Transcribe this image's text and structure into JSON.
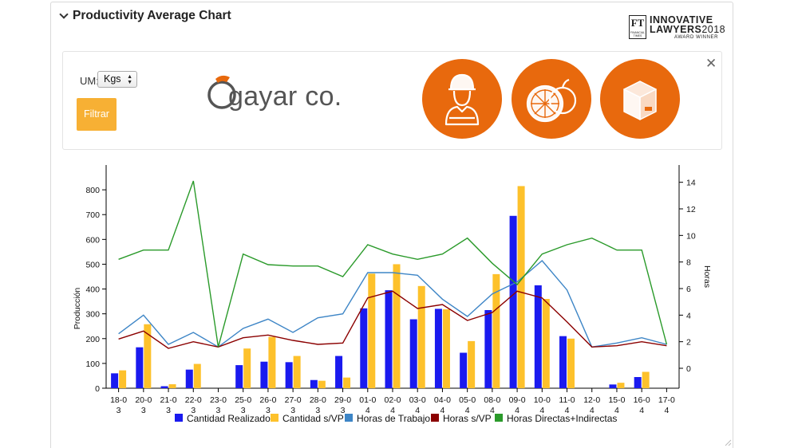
{
  "header": {
    "title": "Productivity Average Chart"
  },
  "award": {
    "ft": "FT",
    "ft_sub": "FINANCIAL TIMES",
    "line1": "INNOVATIVE",
    "line2": "LAWYERS",
    "year": "2018",
    "line3": "AWARD WINNER"
  },
  "filters": {
    "um_label": "UM:",
    "um_value": "Kgs",
    "filter_button": "Filtrar"
  },
  "logo": {
    "text": "gayar co."
  },
  "icons": [
    "worker-icon",
    "citrus-icon",
    "box-icon"
  ],
  "colors": {
    "realizado": "#1a1aef",
    "svp": "#fdc12b",
    "horas_trabajo": "#3d85c6",
    "horas_svp": "#8b0000",
    "horas_directas": "#2a9a2a",
    "accent": "#e8690d",
    "button": "#f7b034"
  },
  "chart_data": {
    "type": "bar",
    "categories": [
      "18-03",
      "20-03",
      "21-03",
      "22-03",
      "23-03",
      "25-03",
      "26-03",
      "27-03",
      "28-03",
      "29-03",
      "01-04",
      "02-04",
      "03-04",
      "04-04",
      "05-04",
      "08-04",
      "09-04",
      "10-04",
      "11-04",
      "12-04",
      "15-04",
      "16-04",
      "17-04"
    ],
    "category_labels": [
      [
        "18-0",
        "3"
      ],
      [
        "20-0",
        "3"
      ],
      [
        "21-0",
        "3"
      ],
      [
        "22-0",
        "3"
      ],
      [
        "23-0",
        "3"
      ],
      [
        "25-0",
        "3"
      ],
      [
        "26-0",
        "3"
      ],
      [
        "27-0",
        "3"
      ],
      [
        "28-0",
        "3"
      ],
      [
        "29-0",
        "3"
      ],
      [
        "01-0",
        "4"
      ],
      [
        "02-0",
        "4"
      ],
      [
        "03-0",
        "4"
      ],
      [
        "04-0",
        "4"
      ],
      [
        "05-0",
        "4"
      ],
      [
        "08-0",
        "4"
      ],
      [
        "09-0",
        "4"
      ],
      [
        "10-0",
        "4"
      ],
      [
        "11-0",
        "4"
      ],
      [
        "12-0",
        "4"
      ],
      [
        "15-0",
        "4"
      ],
      [
        "16-0",
        "4"
      ],
      [
        "17-0",
        "4"
      ]
    ],
    "ylabel": "Producción",
    "y2label": "Horas",
    "ylim": [
      0,
      900
    ],
    "yticks": [
      0,
      100,
      200,
      300,
      400,
      500,
      600,
      700,
      800
    ],
    "y2lim": [
      -1.5,
      15.3
    ],
    "y2ticks": [
      0,
      2,
      4,
      6,
      8,
      10,
      12,
      14
    ],
    "legend_position": "bottom",
    "bar_series": [
      {
        "name": "Cantidad Realizado",
        "values": [
          60,
          165,
          8,
          75,
          0,
          93,
          107,
          105,
          33,
          130,
          322,
          395,
          278,
          320,
          143,
          315,
          695,
          415,
          210,
          0,
          15,
          45,
          0
        ]
      },
      {
        "name": "Cantidad s/VP",
        "values": [
          72,
          258,
          16,
          98,
          0,
          160,
          207,
          130,
          30,
          43,
          462,
          500,
          412,
          318,
          190,
          460,
          815,
          360,
          200,
          0,
          22,
          66,
          0
        ]
      }
    ],
    "line_series": [
      {
        "name": "Horas de Trabajo",
        "values": [
          2.6,
          4.0,
          1.8,
          2.7,
          1.6,
          3.0,
          3.7,
          2.7,
          3.8,
          4.1,
          7.2,
          7.2,
          7.0,
          5.2,
          3.9,
          5.6,
          6.5,
          8.1,
          5.9,
          1.6,
          1.9,
          2.3,
          1.8
        ]
      },
      {
        "name": "Horas s/VP",
        "values": [
          2.2,
          2.8,
          1.5,
          2.0,
          1.6,
          2.3,
          2.5,
          2.1,
          1.8,
          1.9,
          5.3,
          5.8,
          4.5,
          4.8,
          3.6,
          4.2,
          5.8,
          5.3,
          3.5,
          1.6,
          1.7,
          2.0,
          1.7
        ]
      },
      {
        "name": "Horas Directas+Indirectas",
        "values": [
          8.2,
          8.9,
          8.9,
          14.1,
          1.6,
          8.6,
          7.8,
          7.7,
          7.7,
          6.9,
          9.3,
          8.6,
          8.2,
          8.6,
          9.8,
          7.9,
          6.3,
          8.6,
          9.3,
          9.8,
          8.9,
          8.9,
          1.8
        ]
      }
    ]
  }
}
